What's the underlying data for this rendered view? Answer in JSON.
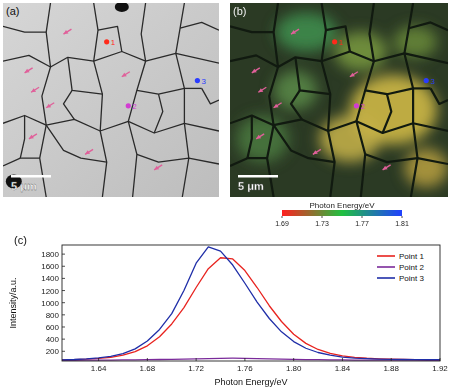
{
  "figure": {
    "panels": [
      {
        "label": "(a)",
        "scale_bar": "5 μm"
      },
      {
        "label": "(b)",
        "scale_bar": "5 μm"
      }
    ],
    "points": [
      {
        "label": "1",
        "color": "#ff2a1a"
      },
      {
        "label": "2",
        "color": "#d23cd2"
      },
      {
        "label": "3",
        "color": "#2a3cff"
      }
    ],
    "colorbar": {
      "label": "Photon Energy/eV",
      "range": [
        1.69,
        1.81
      ],
      "ticks": [
        1.69,
        1.73,
        1.77,
        1.81
      ]
    }
  },
  "chart_data": {
    "type": "line",
    "title": "(c)",
    "x_label": "Photon Energy/eV",
    "y_label": "Intensity/a.u.",
    "x": [
      1.61,
      1.62,
      1.63,
      1.64,
      1.65,
      1.66,
      1.67,
      1.68,
      1.69,
      1.7,
      1.71,
      1.72,
      1.73,
      1.74,
      1.75,
      1.76,
      1.77,
      1.78,
      1.79,
      1.8,
      1.81,
      1.82,
      1.83,
      1.84,
      1.85,
      1.86,
      1.87,
      1.88,
      1.89,
      1.9,
      1.91,
      1.92
    ],
    "series": [
      {
        "name": "Point 1",
        "color": "#e8231f",
        "values": [
          60,
          63,
          70,
          82,
          100,
          135,
          195,
          290,
          440,
          650,
          920,
          1250,
          1560,
          1740,
          1720,
          1530,
          1250,
          950,
          690,
          480,
          330,
          230,
          165,
          125,
          100,
          85,
          76,
          70,
          66,
          63,
          62,
          61
        ]
      },
      {
        "name": "Point 2",
        "color": "#7a2a9a",
        "values": [
          50,
          52,
          53,
          55,
          56,
          58,
          60,
          62,
          65,
          68,
          72,
          76,
          80,
          84,
          86,
          84,
          80,
          76,
          72,
          68,
          64,
          61,
          59,
          57,
          56,
          55,
          54,
          54,
          53,
          53,
          52,
          52
        ]
      },
      {
        "name": "Point 3",
        "color": "#1f2ea8",
        "values": [
          60,
          65,
          75,
          90,
          115,
          160,
          240,
          370,
          560,
          820,
          1200,
          1650,
          1920,
          1850,
          1620,
          1320,
          1010,
          740,
          520,
          360,
          250,
          180,
          135,
          105,
          88,
          78,
          72,
          68,
          65,
          63,
          62,
          61
        ]
      }
    ],
    "xlim": [
      1.61,
      1.92
    ],
    "ylim": [
      40,
      1950
    ],
    "xticks": [
      1.64,
      1.68,
      1.72,
      1.76,
      {
        "value": 1.8,
        "label": "1.80"
      },
      1.84,
      1.88,
      1.92
    ],
    "yticks": [
      200,
      400,
      600,
      800,
      1000,
      1200,
      1400,
      1600,
      1800
    ],
    "legend": "upper-right",
    "grid": false
  }
}
